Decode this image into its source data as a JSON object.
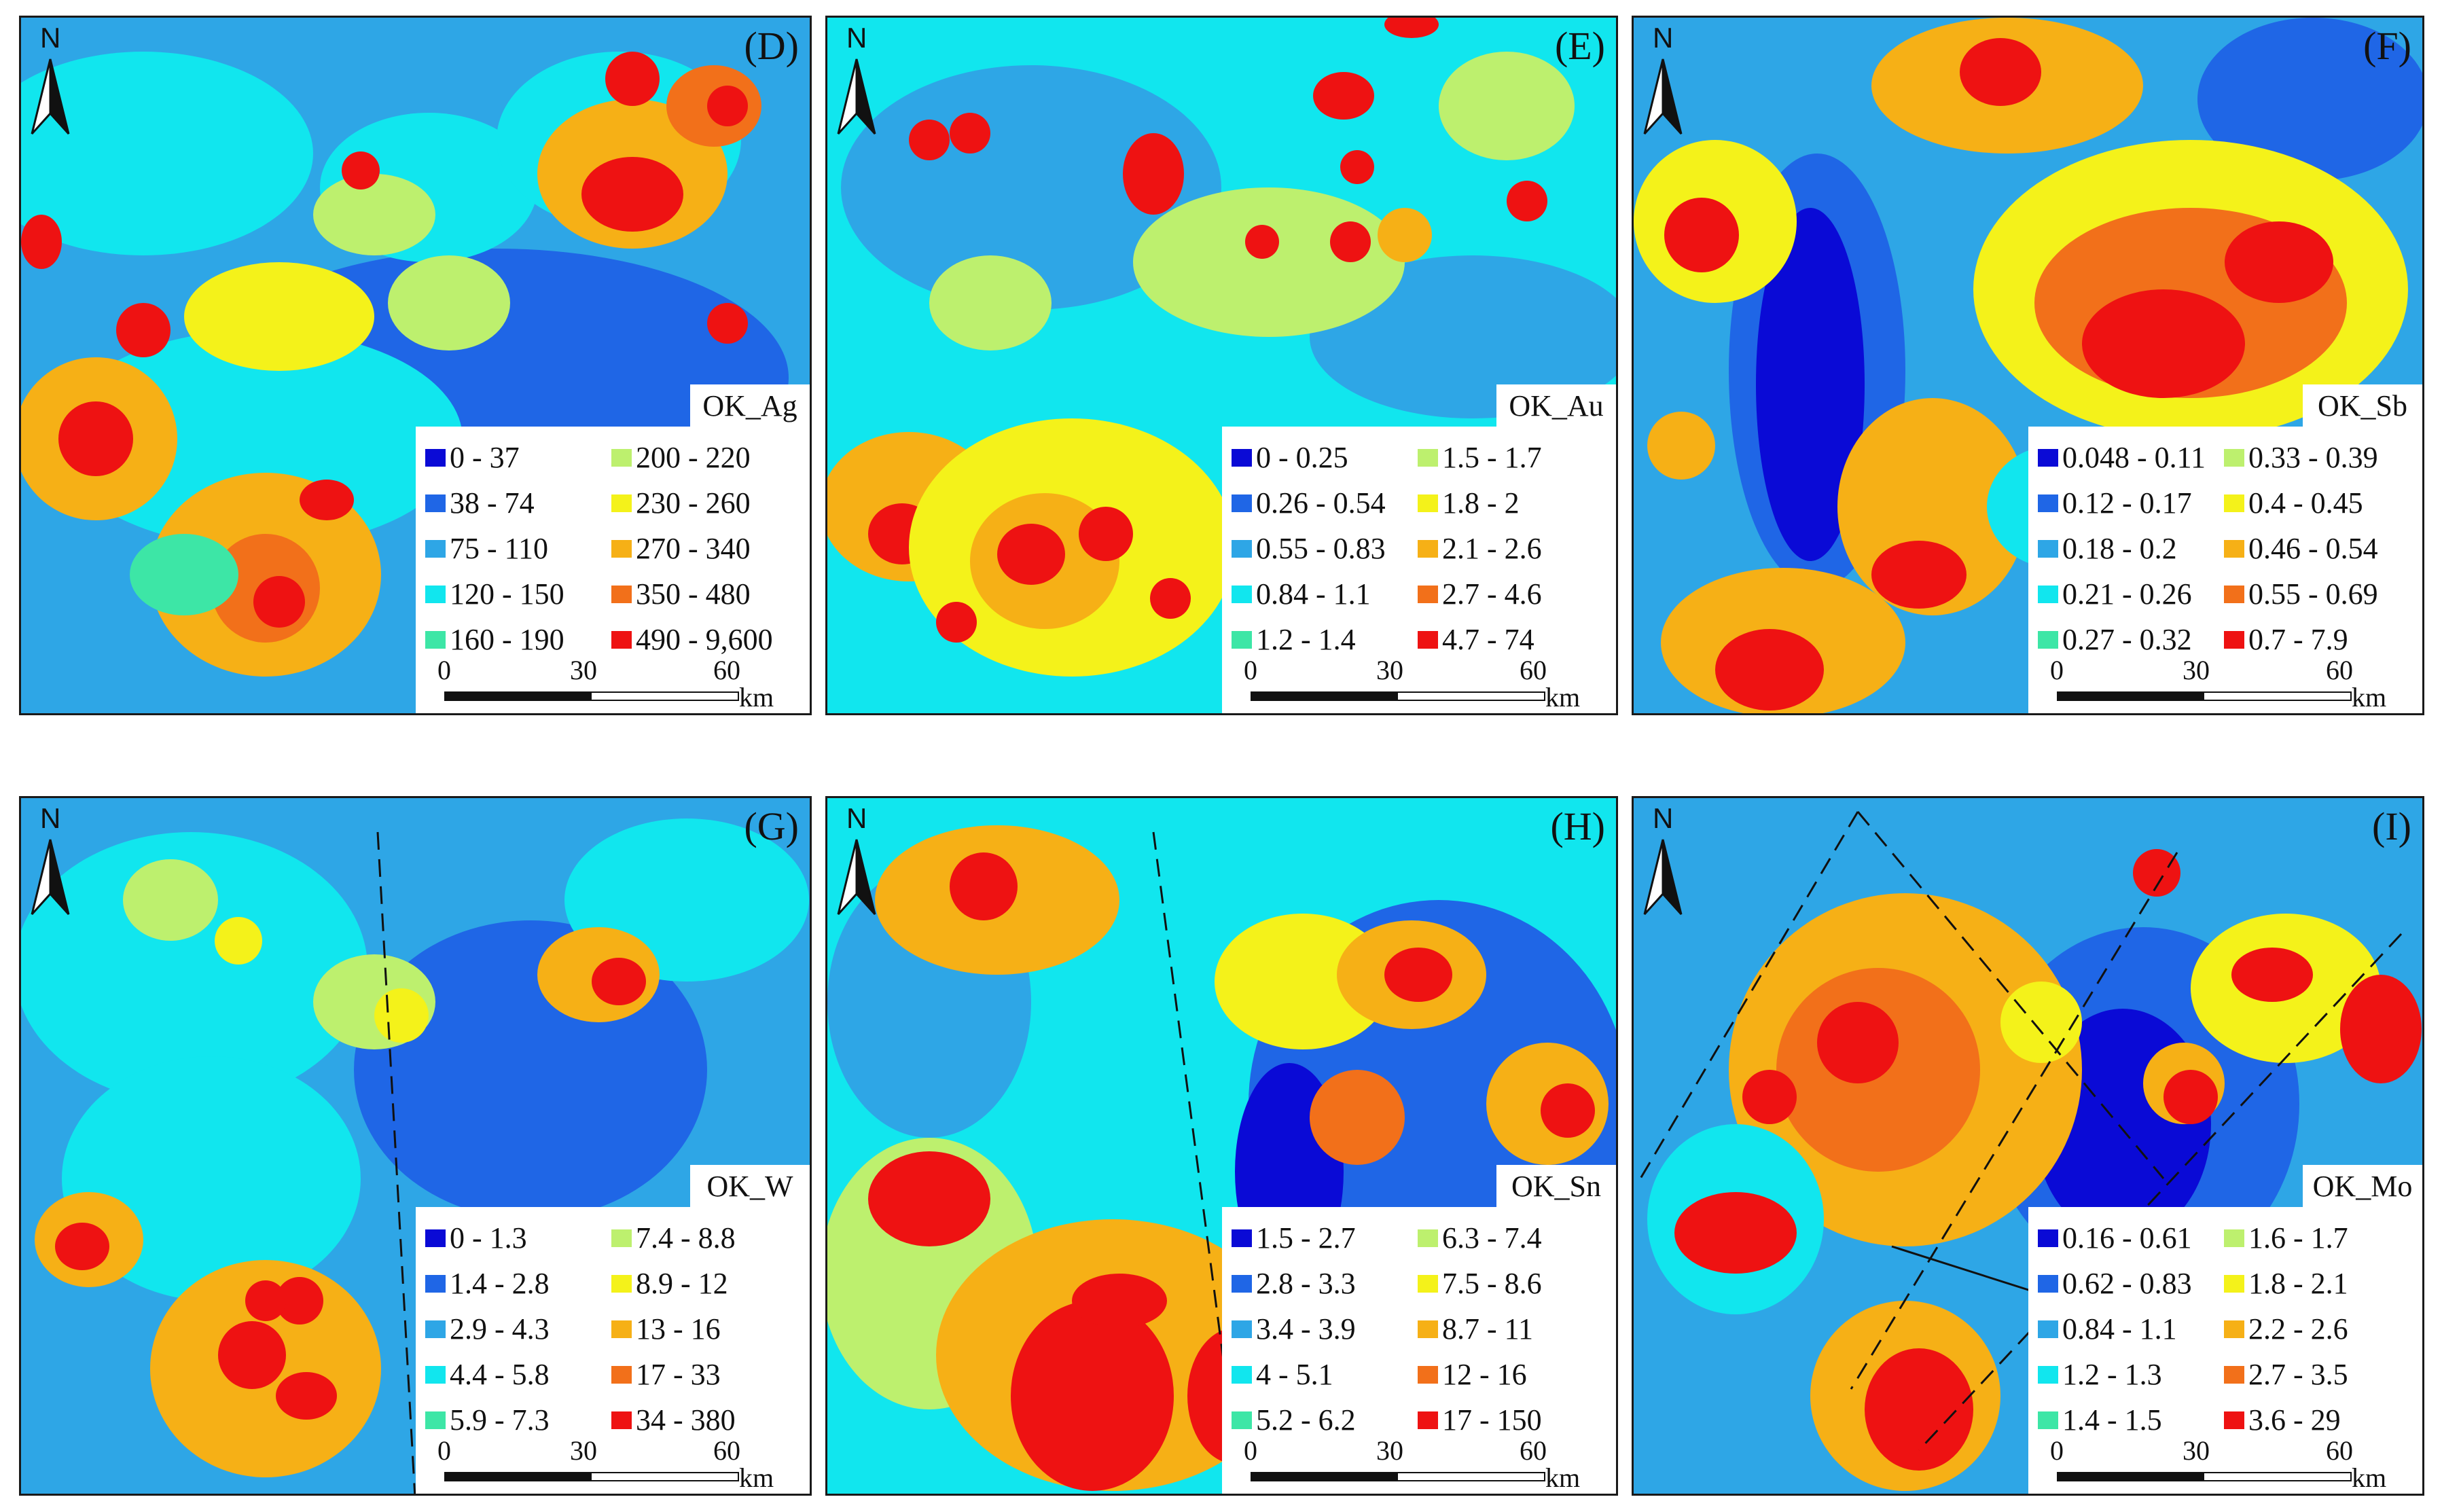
{
  "figure": {
    "north_label": "N",
    "scale": {
      "ticks": [
        "0",
        "30",
        "60"
      ],
      "unit": "km"
    }
  },
  "colors": [
    "#0a0ad6",
    "#1f66e6",
    "#2ea6e6",
    "#11e6ee",
    "#3de6a6",
    "#bdf06e",
    "#f4f21a",
    "#f6b016",
    "#f2701a",
    "#ee1212"
  ],
  "panels": [
    {
      "letter": "(D)",
      "layer": "OK_Ag",
      "bg": "#2ea6e6",
      "legend": [
        "0 - 37",
        "38 - 74",
        "75 - 110",
        "120 - 150",
        "160 - 190",
        "200 - 220",
        "230 - 260",
        "270 - 340",
        "350 - 480",
        "490 - 9,600"
      ]
    },
    {
      "letter": "(E)",
      "layer": "OK_Au",
      "bg": "#11e6ee",
      "legend": [
        "0 - 0.25",
        "0.26 - 0.54",
        "0.55 - 0.83",
        "0.84 - 1.1",
        "1.2 - 1.4",
        "1.5 - 1.7",
        "1.8 - 2",
        "2.1 - 2.6",
        "2.7 - 4.6",
        "4.7 - 74"
      ]
    },
    {
      "letter": "(F)",
      "layer": "OK_Sb",
      "bg": "#2ea6e6",
      "legend": [
        "0.048 - 0.11",
        "0.12 - 0.17",
        "0.18 - 0.2",
        "0.21 - 0.26",
        "0.27 - 0.32",
        "0.33 - 0.39",
        "0.4 - 0.45",
        "0.46 - 0.54",
        "0.55 - 0.69",
        "0.7 - 7.9"
      ]
    },
    {
      "letter": "(G)",
      "layer": "OK_W",
      "bg": "#2ea6e6",
      "legend": [
        "0 - 1.3",
        "1.4 - 2.8",
        "2.9 - 4.3",
        "4.4 - 5.8",
        "5.9 - 7.3",
        "7.4 - 8.8",
        "8.9 - 12",
        "13 - 16",
        "17 - 33",
        "34 - 380"
      ]
    },
    {
      "letter": "(H)",
      "layer": "OK_Sn",
      "bg": "#11e6ee",
      "legend": [
        "1.5 - 2.7",
        "2.8 - 3.3",
        "3.4 - 3.9",
        "4 - 5.1",
        "5.2 - 6.2",
        "6.3 - 7.4",
        "7.5 - 8.6",
        "8.7 - 11",
        "12 - 16",
        "17 - 150"
      ]
    },
    {
      "letter": "(I)",
      "layer": "OK_Mo",
      "bg": "#2ea6e6",
      "legend": [
        "0.16 - 0.61",
        "0.62 - 0.83",
        "0.84 - 1.1",
        "1.2 - 1.3",
        "1.4 - 1.5",
        "1.6 - 1.7",
        "1.8 - 2.1",
        "2.2 - 2.6",
        "2.7 - 3.5",
        "3.6 - 29"
      ]
    }
  ]
}
